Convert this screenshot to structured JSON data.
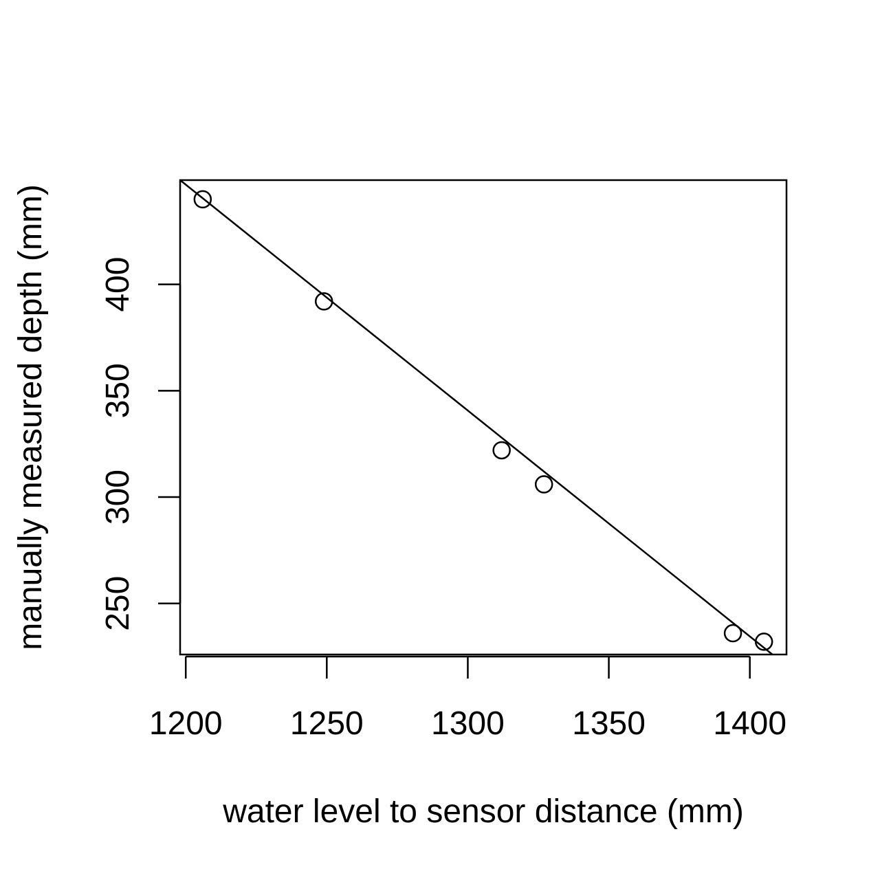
{
  "chart_data": {
    "type": "scatter",
    "title": "",
    "xlabel": "water level to sensor distance (mm)",
    "ylabel": "manually measured depth (mm)",
    "xlim": [
      1198,
      1413
    ],
    "ylim": [
      226,
      449
    ],
    "x_ticks": [
      1200,
      1250,
      1300,
      1350,
      1400
    ],
    "y_ticks": [
      250,
      300,
      350,
      400
    ],
    "grid": false,
    "legend": "none",
    "colors": {
      "points": "#000000",
      "fit_line": "#000000",
      "frame": "#000000"
    },
    "series": [
      {
        "points": [
          {
            "x": 1206,
            "y": 440
          },
          {
            "x": 1249,
            "y": 392
          },
          {
            "x": 1312,
            "y": 322
          },
          {
            "x": 1327,
            "y": 306
          },
          {
            "x": 1394,
            "y": 236
          },
          {
            "x": 1405,
            "y": 232
          }
        ]
      }
    ],
    "fit_line": {
      "x": [
        1198,
        1408
      ],
      "y": [
        449,
        226
      ]
    }
  }
}
